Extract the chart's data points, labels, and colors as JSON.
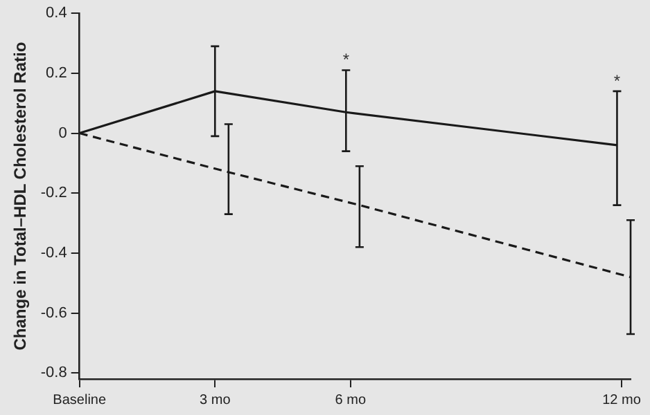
{
  "chart_data": {
    "type": "line",
    "ylabel": "Change in Total–HDL Cholesterol Ratio",
    "xlim": [
      0,
      12.2
    ],
    "xticks": [
      {
        "value": 0,
        "label": "Baseline"
      },
      {
        "value": 3,
        "label": "3 mo"
      },
      {
        "value": 6,
        "label": "6 mo"
      },
      {
        "value": 12,
        "label": "12 mo"
      }
    ],
    "ylim": [
      -0.82,
      0.4
    ],
    "yticks": [
      -0.8,
      -0.6,
      -0.4,
      -0.2,
      0,
      0.2,
      0.4
    ],
    "grid": false,
    "legend": false,
    "marker": "none",
    "series": [
      {
        "color": "#1a1a1a",
        "line_style": "solid",
        "x": [
          0,
          3,
          5.9,
          11.9
        ],
        "values": [
          0,
          0.14,
          0.07,
          -0.04
        ],
        "errors": [
          null,
          [
            -0.01,
            0.29
          ],
          [
            -0.06,
            0.21
          ],
          [
            -0.24,
            0.14
          ]
        ]
      },
      {
        "color": "#1a1a1a",
        "line_style": "dashed",
        "x": [
          0,
          3.3,
          6.2,
          12.2
        ],
        "values": [
          0,
          -0.13,
          -0.24,
          -0.48
        ],
        "errors": [
          null,
          [
            -0.27,
            0.03
          ],
          [
            -0.38,
            -0.11
          ],
          [
            -0.67,
            -0.29
          ]
        ]
      }
    ],
    "annotations": [
      {
        "text": "*",
        "x": 5.9,
        "y": 0.21
      },
      {
        "text": "*",
        "x": 11.9,
        "y": 0.14
      }
    ]
  }
}
